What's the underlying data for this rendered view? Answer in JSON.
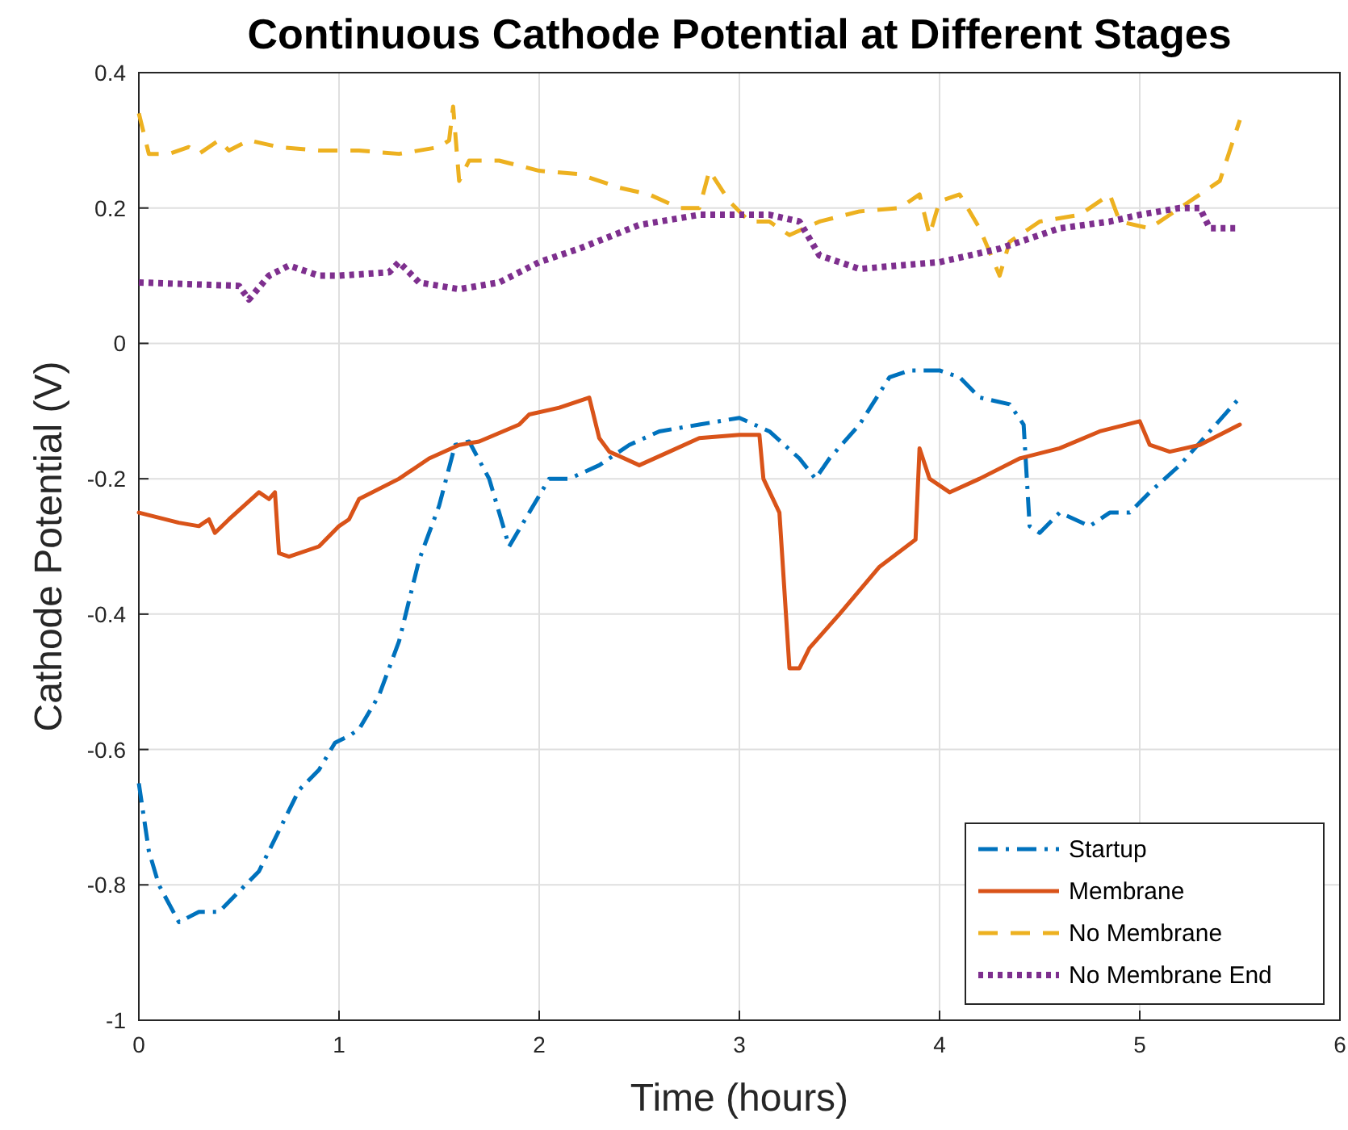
{
  "chart_data": {
    "type": "line",
    "title": "Continuous Cathode Potential at Different Stages",
    "xlabel": "Time (hours)",
    "ylabel": "Cathode Potential (V)",
    "xlim": [
      0,
      6
    ],
    "xticks": [
      0,
      1,
      2,
      3,
      4,
      5,
      6
    ],
    "ylim": [
      -1,
      0.4
    ],
    "yticks": [
      -1,
      -0.8,
      -0.6,
      -0.4,
      -0.2,
      0,
      0.2,
      0.4
    ],
    "grid": true,
    "legend": "bottom right",
    "marker": "none",
    "series": [
      {
        "name": "Startup",
        "color": "#0072bd",
        "line_style": "dashdot",
        "x": [
          0,
          0.05,
          0.1,
          0.2,
          0.3,
          0.4,
          0.5,
          0.6,
          0.7,
          0.8,
          0.9,
          0.98,
          1.05,
          1.1,
          1.2,
          1.3,
          1.4,
          1.5,
          1.58,
          1.65,
          1.75,
          1.8,
          1.85,
          1.95,
          2.05,
          2.15,
          2.3,
          2.45,
          2.6,
          2.8,
          3,
          3.15,
          3.3,
          3.38,
          3.45,
          3.6,
          3.75,
          3.85,
          4,
          4.1,
          4.2,
          4.35,
          4.42,
          4.45,
          4.5,
          4.6,
          4.75,
          4.85,
          4.95,
          5.05,
          5.2,
          5.35,
          5.5
        ],
        "values": [
          -0.65,
          -0.75,
          -0.8,
          -0.855,
          -0.84,
          -0.84,
          -0.81,
          -0.78,
          -0.72,
          -0.66,
          -0.63,
          -0.59,
          -0.58,
          -0.57,
          -0.52,
          -0.44,
          -0.32,
          -0.24,
          -0.15,
          -0.145,
          -0.2,
          -0.25,
          -0.3,
          -0.25,
          -0.2,
          -0.2,
          -0.18,
          -0.15,
          -0.13,
          -0.12,
          -0.11,
          -0.13,
          -0.17,
          -0.2,
          -0.17,
          -0.12,
          -0.05,
          -0.04,
          -0.04,
          -0.05,
          -0.08,
          -0.09,
          -0.12,
          -0.27,
          -0.28,
          -0.25,
          -0.27,
          -0.25,
          -0.25,
          -0.22,
          -0.18,
          -0.13,
          -0.08
        ]
      },
      {
        "name": "Membrane",
        "color": "#d95319",
        "line_style": "solid",
        "x": [
          0,
          0.2,
          0.3,
          0.35,
          0.38,
          0.45,
          0.6,
          0.65,
          0.68,
          0.7,
          0.75,
          0.9,
          1,
          1.05,
          1.1,
          1.3,
          1.45,
          1.6,
          1.7,
          1.9,
          1.95,
          2.1,
          2.25,
          2.3,
          2.35,
          2.5,
          2.65,
          2.8,
          3,
          3.1,
          3.12,
          3.2,
          3.25,
          3.3,
          3.35,
          3.5,
          3.7,
          3.88,
          3.9,
          3.95,
          4.05,
          4.2,
          4.4,
          4.6,
          4.8,
          5,
          5.05,
          5.15,
          5.3,
          5.5
        ],
        "values": [
          -0.25,
          -0.265,
          -0.27,
          -0.26,
          -0.28,
          -0.26,
          -0.22,
          -0.23,
          -0.22,
          -0.31,
          -0.315,
          -0.3,
          -0.27,
          -0.26,
          -0.23,
          -0.2,
          -0.17,
          -0.15,
          -0.145,
          -0.12,
          -0.105,
          -0.095,
          -0.08,
          -0.14,
          -0.16,
          -0.18,
          -0.16,
          -0.14,
          -0.135,
          -0.135,
          -0.2,
          -0.25,
          -0.48,
          -0.48,
          -0.45,
          -0.4,
          -0.33,
          -0.29,
          -0.155,
          -0.2,
          -0.22,
          -0.2,
          -0.17,
          -0.155,
          -0.13,
          -0.115,
          -0.15,
          -0.16,
          -0.15,
          -0.12
        ]
      },
      {
        "name": "No Membrane",
        "color": "#edb120",
        "line_style": "dashed",
        "x": [
          0,
          0.05,
          0.15,
          0.25,
          0.3,
          0.4,
          0.45,
          0.55,
          0.7,
          0.9,
          1.1,
          1.3,
          1.5,
          1.55,
          1.57,
          1.6,
          1.65,
          1.8,
          2,
          2.2,
          2.4,
          2.55,
          2.7,
          2.8,
          2.85,
          2.95,
          3.05,
          3.15,
          3.25,
          3.4,
          3.6,
          3.8,
          3.9,
          3.95,
          4,
          4.1,
          4.2,
          4.3,
          4.35,
          4.5,
          4.7,
          4.85,
          4.9,
          5.05,
          5.2,
          5.4,
          5.5
        ],
        "values": [
          0.34,
          0.28,
          0.28,
          0.29,
          0.28,
          0.3,
          0.285,
          0.3,
          0.29,
          0.285,
          0.285,
          0.28,
          0.29,
          0.3,
          0.35,
          0.24,
          0.27,
          0.27,
          0.255,
          0.25,
          0.23,
          0.22,
          0.2,
          0.2,
          0.255,
          0.21,
          0.18,
          0.18,
          0.16,
          0.18,
          0.195,
          0.2,
          0.22,
          0.16,
          0.21,
          0.22,
          0.17,
          0.1,
          0.15,
          0.18,
          0.19,
          0.22,
          0.18,
          0.17,
          0.2,
          0.24,
          0.33
        ]
      },
      {
        "name": "No Membrane End",
        "color": "#7e2f8e",
        "line_style": "dotted",
        "x": [
          0,
          0.5,
          0.55,
          0.65,
          0.75,
          0.9,
          1,
          1.25,
          1.3,
          1.4,
          1.6,
          1.8,
          2,
          2.2,
          2.5,
          2.8,
          3,
          3.15,
          3.3,
          3.4,
          3.6,
          3.8,
          4,
          4.3,
          4.6,
          4.85,
          5,
          5.2,
          5.3,
          5.35,
          5.5
        ],
        "values": [
          0.09,
          0.085,
          0.065,
          0.1,
          0.115,
          0.1,
          0.1,
          0.105,
          0.12,
          0.09,
          0.08,
          0.09,
          0.12,
          0.14,
          0.175,
          0.19,
          0.19,
          0.19,
          0.18,
          0.13,
          0.11,
          0.115,
          0.12,
          0.14,
          0.17,
          0.18,
          0.19,
          0.2,
          0.2,
          0.17,
          0.17
        ]
      }
    ]
  }
}
